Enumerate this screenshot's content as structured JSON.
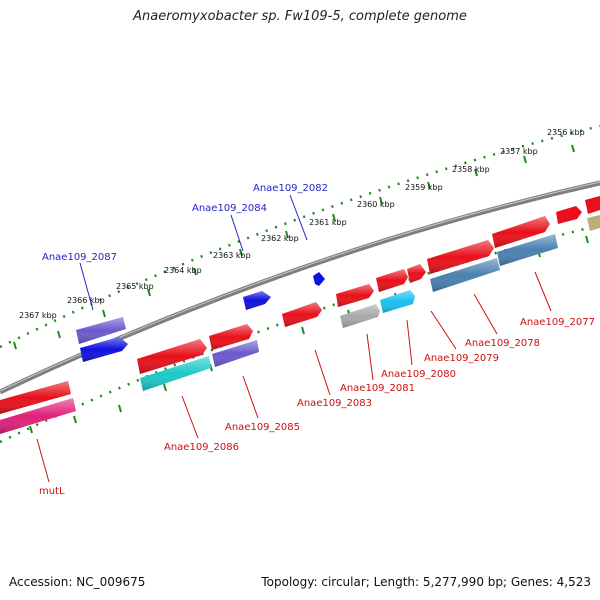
{
  "title": "Anaeromyxobacter sp. Fw109-5, complete genome",
  "accession": "Accession: NC_009675",
  "summary": "Topology: circular; Length: 5,277,990 bp; Genes: 4,523",
  "kbp_labels": [
    "2356 kbp",
    "2357 kbp",
    "2358 kbp",
    "2359 kbp",
    "2360 kbp",
    "2361 kbp",
    "2362 kbp",
    "2363 kbp",
    "2364 kbp",
    "2365 kbp",
    "2366 kbp",
    "2367 kbp"
  ],
  "gene_labels": {
    "g2082": "Anae109_2082",
    "g2084": "Anae109_2084",
    "g2087": "Anae109_2087",
    "g2077": "Anae109_2077",
    "g2078": "Anae109_2078",
    "g2079": "Anae109_2079",
    "g2080": "Anae109_2080",
    "g2081": "Anae109_2081",
    "g2083": "Anae109_2083",
    "g2085": "Anae109_2085",
    "g2086": "Anae109_2086",
    "mutL": "mutL"
  },
  "colors": {
    "red": "#e8101a",
    "blue": "#1010e0",
    "purple": "#6a5acd",
    "cyan": "#1cc8c8",
    "skyblue": "#18c0f0",
    "steelblue": "#4a7fb0",
    "gray": "#a8a8a8",
    "pink": "#e0207a",
    "olive": "#b8b078",
    "backbone": "#7a7a7a",
    "tick": "#1d8a1d"
  }
}
